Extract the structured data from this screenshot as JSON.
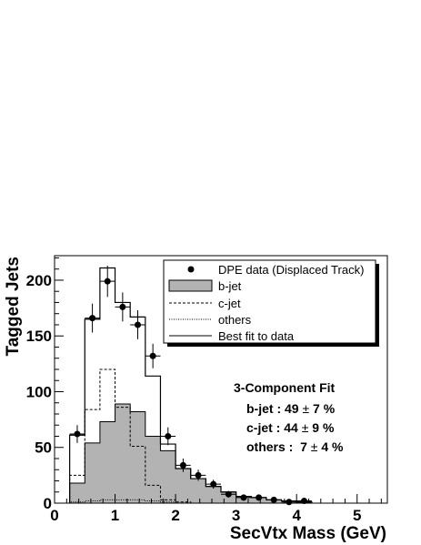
{
  "chart_data": {
    "type": "histogram",
    "xlabel": "SecVtx Mass (GeV)",
    "ylabel": "Tagged Jets",
    "xlim": [
      0,
      5.5
    ],
    "ylim": [
      0,
      222
    ],
    "x_ticks": [
      "0",
      "1",
      "2",
      "3",
      "4",
      "5"
    ],
    "y_ticks": [
      "0",
      "50",
      "100",
      "150",
      "200"
    ],
    "bin_edges": [
      0.25,
      0.5,
      0.75,
      1.0,
      1.25,
      1.5,
      1.75,
      2.0,
      2.25,
      2.5,
      2.75,
      3.0,
      3.25,
      3.5,
      3.75,
      4.0,
      4.25
    ],
    "series": [
      {
        "name": "DPE data (Displaced Track)",
        "style": "points",
        "x": [
          0.375,
          0.625,
          0.875,
          1.125,
          1.375,
          1.625,
          1.875,
          2.125,
          2.375,
          2.625,
          2.875,
          3.125,
          3.375,
          3.625,
          3.875,
          4.125
        ],
        "y": [
          62,
          166,
          199,
          176,
          160,
          132,
          60,
          34,
          25,
          17,
          8,
          5,
          5,
          3,
          1,
          2
        ],
        "yerr": [
          8,
          13,
          14,
          13,
          13,
          11,
          8,
          6,
          5,
          4,
          3,
          2,
          2,
          2,
          1,
          1
        ]
      },
      {
        "name": "b-jet",
        "style": "filled",
        "values": [
          18,
          54,
          73,
          89,
          82,
          60,
          47,
          31,
          22,
          15,
          10,
          6,
          5,
          3,
          2,
          1
        ]
      },
      {
        "name": "c-jet",
        "style": "dashed",
        "values": [
          25,
          84,
          120,
          86,
          51,
          16,
          3,
          1,
          0,
          0,
          0,
          0,
          0,
          0,
          0,
          0
        ]
      },
      {
        "name": "others",
        "style": "dotted",
        "values": [
          1,
          2,
          3,
          3,
          3,
          2,
          1,
          0,
          0,
          0,
          0,
          0,
          0,
          0,
          0,
          0
        ]
      },
      {
        "name": "Best fit to data",
        "style": "solid",
        "values": [
          61,
          165,
          211,
          180,
          167,
          114,
          53,
          31,
          22,
          15,
          10,
          6,
          5,
          3,
          2,
          1
        ]
      }
    ],
    "legend_position": "top-right",
    "grid": false
  },
  "legend": {
    "data": "DPE data (Displaced Track)",
    "bjet": "b-jet",
    "cjet": "c-jet",
    "others": "others",
    "fit": "Best fit to data"
  },
  "fit_box": {
    "title": "3-Component Fit",
    "lines": [
      {
        "label": "b-jet : 49",
        "pm": "±",
        "value": "7 %"
      },
      {
        "label": "c-jet : 44",
        "pm": "±",
        "value": "9 %"
      },
      {
        "label": "others :  7",
        "pm": "±",
        "value": "4 %"
      }
    ]
  },
  "colors": {
    "bjet_fill": "#b3b3b3",
    "line": "#000000",
    "background": "#ffffff"
  }
}
